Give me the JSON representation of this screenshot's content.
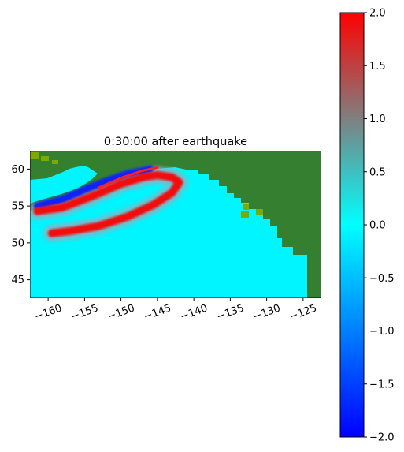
{
  "chart_data": {
    "type": "heatmap",
    "title": "0:30:00 after earthquake",
    "xlabel": "",
    "ylabel": "",
    "xlim": [
      -162.5,
      -122.5
    ],
    "ylim": [
      42.5,
      62.5
    ],
    "x_ticks": [
      -160,
      -155,
      -150,
      -145,
      -140,
      -135,
      -130,
      -125
    ],
    "x_tick_labels": [
      "−160",
      "−155",
      "−150",
      "−145",
      "−140",
      "−135",
      "−130",
      "−125"
    ],
    "y_ticks": [
      45,
      50,
      55,
      60
    ],
    "y_tick_labels": [
      "45",
      "50",
      "55",
      "60"
    ],
    "grid": false,
    "colorbar": {
      "vmin": -2.0,
      "vmax": 2.0,
      "ticks": [
        -2.0,
        -1.5,
        -1.0,
        -0.5,
        0.0,
        0.5,
        1.0,
        1.5,
        2.0
      ],
      "tick_labels": [
        "−2.0",
        "−1.5",
        "−1.0",
        "−0.5",
        "0.0",
        "0.5",
        "1.0",
        "1.5",
        "2.0"
      ],
      "colors": [
        "#0000ff",
        "#00ffff",
        "#ff0000"
      ]
    },
    "land_color": "#357f30",
    "shallow_color": "#7fa800",
    "ocean_zero_color": "#00f5ff",
    "wave": {
      "leading_crest": [
        [
          -161.5,
          54.3
        ],
        [
          -158,
          54.8
        ],
        [
          -154,
          56.3
        ],
        [
          -150,
          58.0
        ],
        [
          -147,
          58.9
        ],
        [
          -145,
          59.2
        ],
        [
          -143,
          58.9
        ],
        [
          -142,
          58.2
        ],
        [
          -143,
          56.8
        ],
        [
          -145.5,
          55.2
        ],
        [
          -149,
          53.6
        ],
        [
          -153,
          52.3
        ],
        [
          -157,
          51.6
        ],
        [
          -159.5,
          51.3
        ]
      ],
      "trough_band": [
        [
          -161.5,
          55.0
        ],
        [
          -158,
          55.9
        ],
        [
          -155,
          57.2
        ],
        [
          -152,
          58.4
        ],
        [
          -149,
          59.4
        ],
        [
          -146,
          60.0
        ]
      ],
      "coastal_peak": [
        [
          -153,
          57.5
        ],
        [
          -150,
          58.8
        ],
        [
          -147,
          59.8
        ],
        [
          -145,
          60.2
        ]
      ]
    }
  }
}
